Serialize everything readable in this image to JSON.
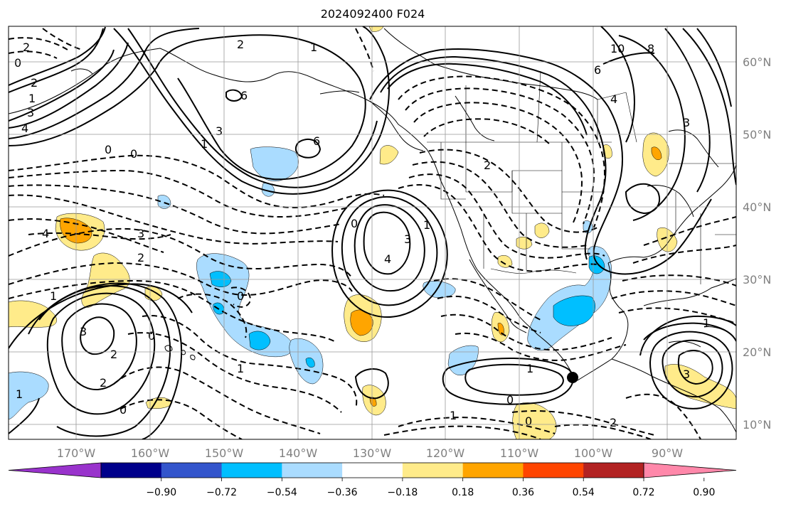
{
  "title": "2024092400 F024",
  "map": {
    "lon_labels": [
      "170°W",
      "160°W",
      "150°W",
      "140°W",
      "130°W",
      "120°W",
      "110°W",
      "100°W",
      "90°W"
    ],
    "lat_labels": [
      "60°N",
      "50°N",
      "40°N",
      "30°N",
      "20°N",
      "10°N"
    ],
    "contour_labels": [
      "2",
      "2",
      "1",
      "0",
      "1",
      "2",
      "3",
      "4",
      "6",
      "6",
      "3",
      "1",
      "0",
      "4",
      "3",
      "2",
      "1",
      "0",
      "3",
      "2",
      "1",
      "0",
      "2",
      "0",
      "1",
      "4",
      "3",
      "0",
      "1",
      "0",
      "1",
      "0",
      "1",
      "2",
      "10",
      "8",
      "6",
      "4",
      "3",
      "2",
      "0",
      "1",
      "3"
    ],
    "marker": "filled-circle",
    "colors": {
      "shade_light_blue": "#aadcff",
      "shade_cyan": "#00bfff",
      "shade_light_yellow": "#ffeb8a",
      "shade_orange": "#ffa500",
      "contour": "#000000",
      "grid": "#999999",
      "axis_label": "#808080"
    }
  },
  "colorbar": {
    "ticks": [
      "−0.90",
      "−0.72",
      "−0.54",
      "−0.36",
      "−0.18",
      "0.18",
      "0.36",
      "0.54",
      "0.72",
      "0.90"
    ],
    "colors": [
      "#9933cc",
      "#00008b",
      "#3355cc",
      "#00bfff",
      "#aadcff",
      "#ffffff",
      "#ffeb8a",
      "#ffa500",
      "#ff4500",
      "#b22222",
      "#ff88aa"
    ]
  }
}
